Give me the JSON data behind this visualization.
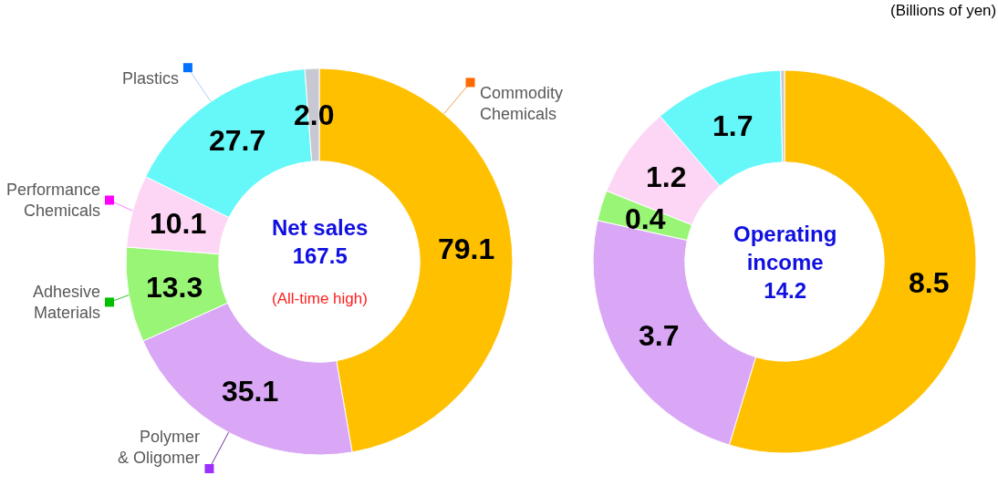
{
  "chart_data": [
    {
      "type": "donut",
      "title": "Net sales",
      "subtitle": "167.5",
      "annotations": [
        "(All-time high)"
      ],
      "categories": [
        "Commodity Chemicals",
        "Polymer & Oligomer",
        "Adhesive Materials",
        "Performance Chemicals",
        "Plastics",
        null
      ],
      "values": [
        79.1,
        35.1,
        13.3,
        10.1,
        27.7,
        2.0
      ],
      "value_labels": [
        "79.1",
        "35.1",
        "13.3",
        "10.1",
        "27.7",
        "2.0"
      ],
      "colors": [
        "#ffc000",
        "#d9a7f5",
        "#99f576",
        "#fdd5f5",
        "#66f8f8",
        "#c8c8d2"
      ],
      "legend": false
    },
    {
      "type": "donut",
      "title": "Operating income",
      "subtitle": "14.2",
      "annotations": [
        "(Billions of yen)"
      ],
      "categories": [
        null,
        null,
        null,
        null,
        null,
        null
      ],
      "values": [
        8.5,
        3.7,
        0.4,
        1.2,
        1.7,
        0.05
      ],
      "value_labels": [
        "8.5",
        "3.7",
        "0.4",
        "1.2",
        "1.7",
        null
      ],
      "colors": [
        "#ffc000",
        "#d9a7f5",
        "#99f576",
        "#fdd5f5",
        "#66f8f8",
        "#c8c8d2"
      ],
      "legend": false
    }
  ]
}
